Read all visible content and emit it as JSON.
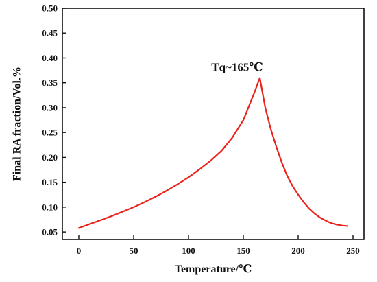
{
  "chart_data": {
    "type": "line",
    "title": "",
    "xlabel": "Temperature/℃",
    "ylabel": "Final RA fraction/Vol.%",
    "xlim": [
      -15,
      260
    ],
    "ylim": [
      0.035,
      0.5
    ],
    "xticks": [
      0,
      50,
      100,
      150,
      200,
      250
    ],
    "yticks": [
      0.05,
      0.1,
      0.15,
      0.2,
      0.25,
      0.3,
      0.35,
      0.4,
      0.45,
      0.5
    ],
    "ytick_labels": [
      "0.05",
      "0.10",
      "0.15",
      "0.20",
      "0.25",
      "0.30",
      "0.35",
      "0.40",
      "0.45",
      "0.50"
    ],
    "grid": false,
    "legend": "none",
    "series": [
      {
        "color": "#e8231b",
        "x": [
          0,
          10,
          20,
          30,
          40,
          50,
          60,
          70,
          80,
          90,
          100,
          110,
          120,
          130,
          140,
          150,
          160,
          165,
          170,
          175,
          180,
          185,
          190,
          195,
          200,
          205,
          210,
          215,
          220,
          225,
          230,
          235,
          240,
          245
        ],
        "y": [
          0.058,
          0.066,
          0.074,
          0.082,
          0.091,
          0.1,
          0.11,
          0.121,
          0.133,
          0.146,
          0.16,
          0.176,
          0.193,
          0.213,
          0.24,
          0.275,
          0.33,
          0.36,
          0.3,
          0.257,
          0.222,
          0.19,
          0.163,
          0.142,
          0.125,
          0.11,
          0.097,
          0.087,
          0.079,
          0.073,
          0.068,
          0.065,
          0.063,
          0.062
        ]
      }
    ],
    "annotations": [
      {
        "text": "Tq~165℃",
        "x": 165,
        "y": 0.36
      }
    ]
  }
}
